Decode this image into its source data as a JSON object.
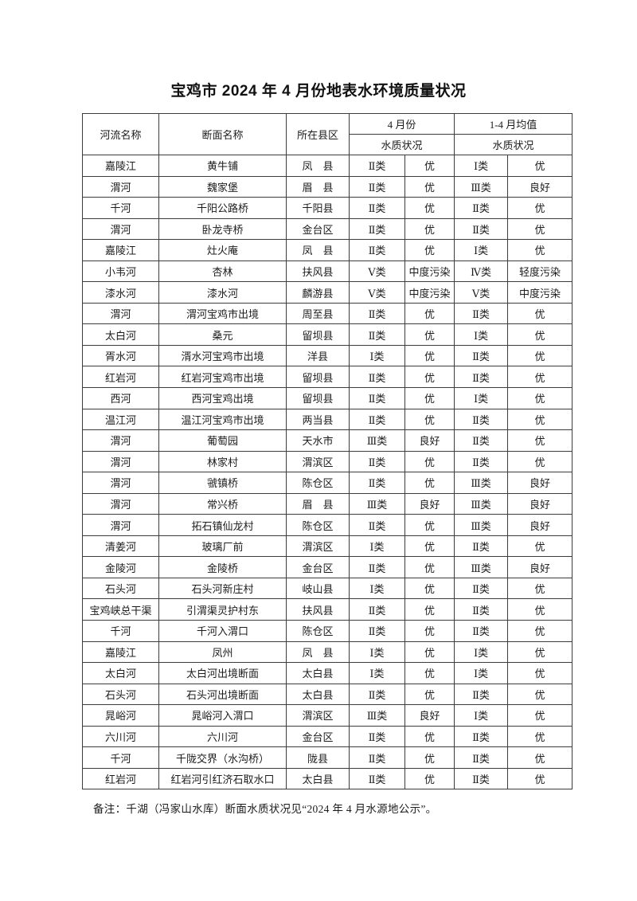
{
  "page": {
    "title": "宝鸡市 2024 年 4 月份地表水环境质量状况",
    "note": "备注：千湖（冯家山水库）断面水质状况见“2024 年 4 月水源地公示”。"
  },
  "table": {
    "headers": {
      "river": "河流名称",
      "section": "断面名称",
      "county": "所在县区",
      "april": "4 月份",
      "avg": "1-4 月均值",
      "quality": "水质状况"
    },
    "rows": [
      [
        "嘉陵江",
        "黄牛铺",
        "凤　县",
        "Ⅱ类",
        "优",
        "Ⅰ类",
        "优"
      ],
      [
        "渭河",
        "魏家堡",
        "眉　县",
        "Ⅱ类",
        "优",
        "Ⅲ类",
        "良好"
      ],
      [
        "千河",
        "千阳公路桥",
        "千阳县",
        "Ⅱ类",
        "优",
        "Ⅱ类",
        "优"
      ],
      [
        "渭河",
        "卧龙寺桥",
        "金台区",
        "Ⅱ类",
        "优",
        "Ⅱ类",
        "优"
      ],
      [
        "嘉陵江",
        "灶火庵",
        "凤　县",
        "Ⅱ类",
        "优",
        "Ⅰ类",
        "优"
      ],
      [
        "小韦河",
        "杏林",
        "扶风县",
        "Ⅴ类",
        "中度污染",
        "Ⅳ类",
        "轻度污染"
      ],
      [
        "漆水河",
        "漆水河",
        "麟游县",
        "Ⅴ类",
        "中度污染",
        "Ⅴ类",
        "中度污染"
      ],
      [
        "渭河",
        "渭河宝鸡市出境",
        "周至县",
        "Ⅱ类",
        "优",
        "Ⅱ类",
        "优"
      ],
      [
        "太白河",
        "桑元",
        "留坝县",
        "Ⅱ类",
        "优",
        "Ⅰ类",
        "优"
      ],
      [
        "胥水河",
        "湑水河宝鸡市出境",
        "洋县",
        "Ⅰ类",
        "优",
        "Ⅱ类",
        "优"
      ],
      [
        "红岩河",
        "红岩河宝鸡市出境",
        "留坝县",
        "Ⅱ类",
        "优",
        "Ⅱ类",
        "优"
      ],
      [
        "西河",
        "西河宝鸡出境",
        "留坝县",
        "Ⅱ类",
        "优",
        "Ⅰ类",
        "优"
      ],
      [
        "温江河",
        "温江河宝鸡市出境",
        "两当县",
        "Ⅱ类",
        "优",
        "Ⅱ类",
        "优"
      ],
      [
        "渭河",
        "葡萄园",
        "天水市",
        "Ⅲ类",
        "良好",
        "Ⅱ类",
        "优"
      ],
      [
        "渭河",
        "林家村",
        "渭滨区",
        "Ⅱ类",
        "优",
        "Ⅱ类",
        "优"
      ],
      [
        "渭河",
        "虢镇桥",
        "陈仓区",
        "Ⅱ类",
        "优",
        "Ⅲ类",
        "良好"
      ],
      [
        "渭河",
        "常兴桥",
        "眉　县",
        "Ⅲ类",
        "良好",
        "Ⅲ类",
        "良好"
      ],
      [
        "渭河",
        "拓石镇仙龙村",
        "陈仓区",
        "Ⅱ类",
        "优",
        "Ⅲ类",
        "良好"
      ],
      [
        "清姜河",
        "玻璃厂前",
        "渭滨区",
        "Ⅰ类",
        "优",
        "Ⅱ类",
        "优"
      ],
      [
        "金陵河",
        "金陵桥",
        "金台区",
        "Ⅱ类",
        "优",
        "Ⅲ类",
        "良好"
      ],
      [
        "石头河",
        "石头河新庄村",
        "岐山县",
        "Ⅰ类",
        "优",
        "Ⅱ类",
        "优"
      ],
      [
        "宝鸡峡总干渠",
        "引渭渠灵护村东",
        "扶风县",
        "Ⅱ类",
        "优",
        "Ⅱ类",
        "优"
      ],
      [
        "千河",
        "千河入渭口",
        "陈仓区",
        "Ⅱ类",
        "优",
        "Ⅱ类",
        "优"
      ],
      [
        "嘉陵江",
        "凤州",
        "凤　县",
        "Ⅰ类",
        "优",
        "Ⅰ类",
        "优"
      ],
      [
        "太白河",
        "太白河出境断面",
        "太白县",
        "Ⅰ类",
        "优",
        "Ⅰ类",
        "优"
      ],
      [
        "石头河",
        "石头河出境断面",
        "太白县",
        "Ⅱ类",
        "优",
        "Ⅱ类",
        "优"
      ],
      [
        "晁峪河",
        "晁峪河入渭口",
        "渭滨区",
        "Ⅲ类",
        "良好",
        "Ⅰ类",
        "优"
      ],
      [
        "六川河",
        "六川河",
        "金台区",
        "Ⅱ类",
        "优",
        "Ⅱ类",
        "优"
      ],
      [
        "千河",
        "千陇交界（水沟桥）",
        "陇县",
        "Ⅱ类",
        "优",
        "Ⅱ类",
        "优"
      ],
      [
        "红岩河",
        "红岩河引红济石取水口",
        "太白县",
        "Ⅱ类",
        "优",
        "Ⅱ类",
        "优"
      ]
    ]
  }
}
